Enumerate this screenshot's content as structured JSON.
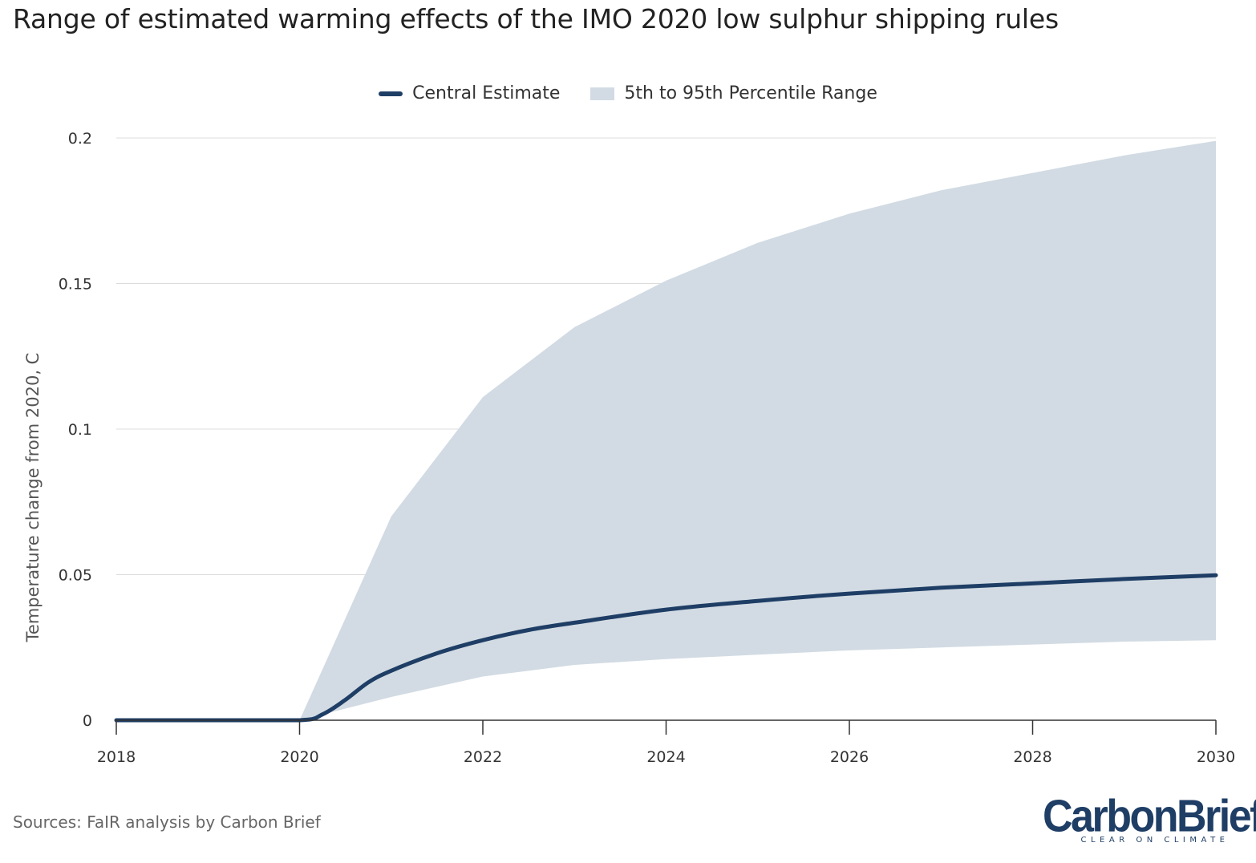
{
  "chart_data": {
    "type": "area",
    "title": "Range of estimated warming effects of the IMO 2020 low sulphur shipping rules",
    "ylabel": "Temperature change from 2020, C",
    "xlabel": "",
    "xlim": [
      2018,
      2030
    ],
    "ylim": [
      0,
      0.2
    ],
    "x_ticks": [
      "2018",
      "2020",
      "2022",
      "2024",
      "2026",
      "2028",
      "2030"
    ],
    "y_ticks": [
      "0",
      "0.05",
      "0.1",
      "0.15",
      "0.2"
    ],
    "grid": true,
    "legend_position": "top-center",
    "series": [
      {
        "name": "Central Estimate",
        "kind": "line",
        "color": "#1f3e66",
        "x": [
          2018,
          2019,
          2020,
          2020.25,
          2020.5,
          2020.75,
          2021,
          2021.5,
          2022,
          2022.5,
          2023,
          2024,
          2025,
          2026,
          2027,
          2028,
          2029,
          2030
        ],
        "values": [
          0,
          0,
          0,
          0.002,
          0.007,
          0.013,
          0.017,
          0.023,
          0.0275,
          0.031,
          0.0335,
          0.038,
          0.041,
          0.0435,
          0.0455,
          0.047,
          0.0485,
          0.0498
        ]
      },
      {
        "name": "5th to 95th Percentile Range",
        "kind": "band",
        "color": "#d2dbe3",
        "x": [
          2020,
          2021,
          2022,
          2023,
          2024,
          2025,
          2026,
          2027,
          2028,
          2029,
          2030
        ],
        "lower": [
          0,
          0.008,
          0.015,
          0.019,
          0.021,
          0.0225,
          0.024,
          0.025,
          0.026,
          0.027,
          0.0275
        ],
        "upper": [
          0,
          0.07,
          0.111,
          0.135,
          0.151,
          0.164,
          0.174,
          0.182,
          0.188,
          0.194,
          0.199
        ]
      }
    ]
  },
  "legend": {
    "central_label": "Central Estimate",
    "range_label": "5th to 95th Percentile Range"
  },
  "footer": {
    "source": "Sources: FaIR analysis by Carbon Brief",
    "logo_text": "CarbonBrief",
    "logo_tagline": "CLEAR ON CLIMATE"
  },
  "colors": {
    "line": "#1f3e66",
    "band": "#d2dbe3",
    "grid": "#dcdcdc",
    "axis": "#333333"
  }
}
